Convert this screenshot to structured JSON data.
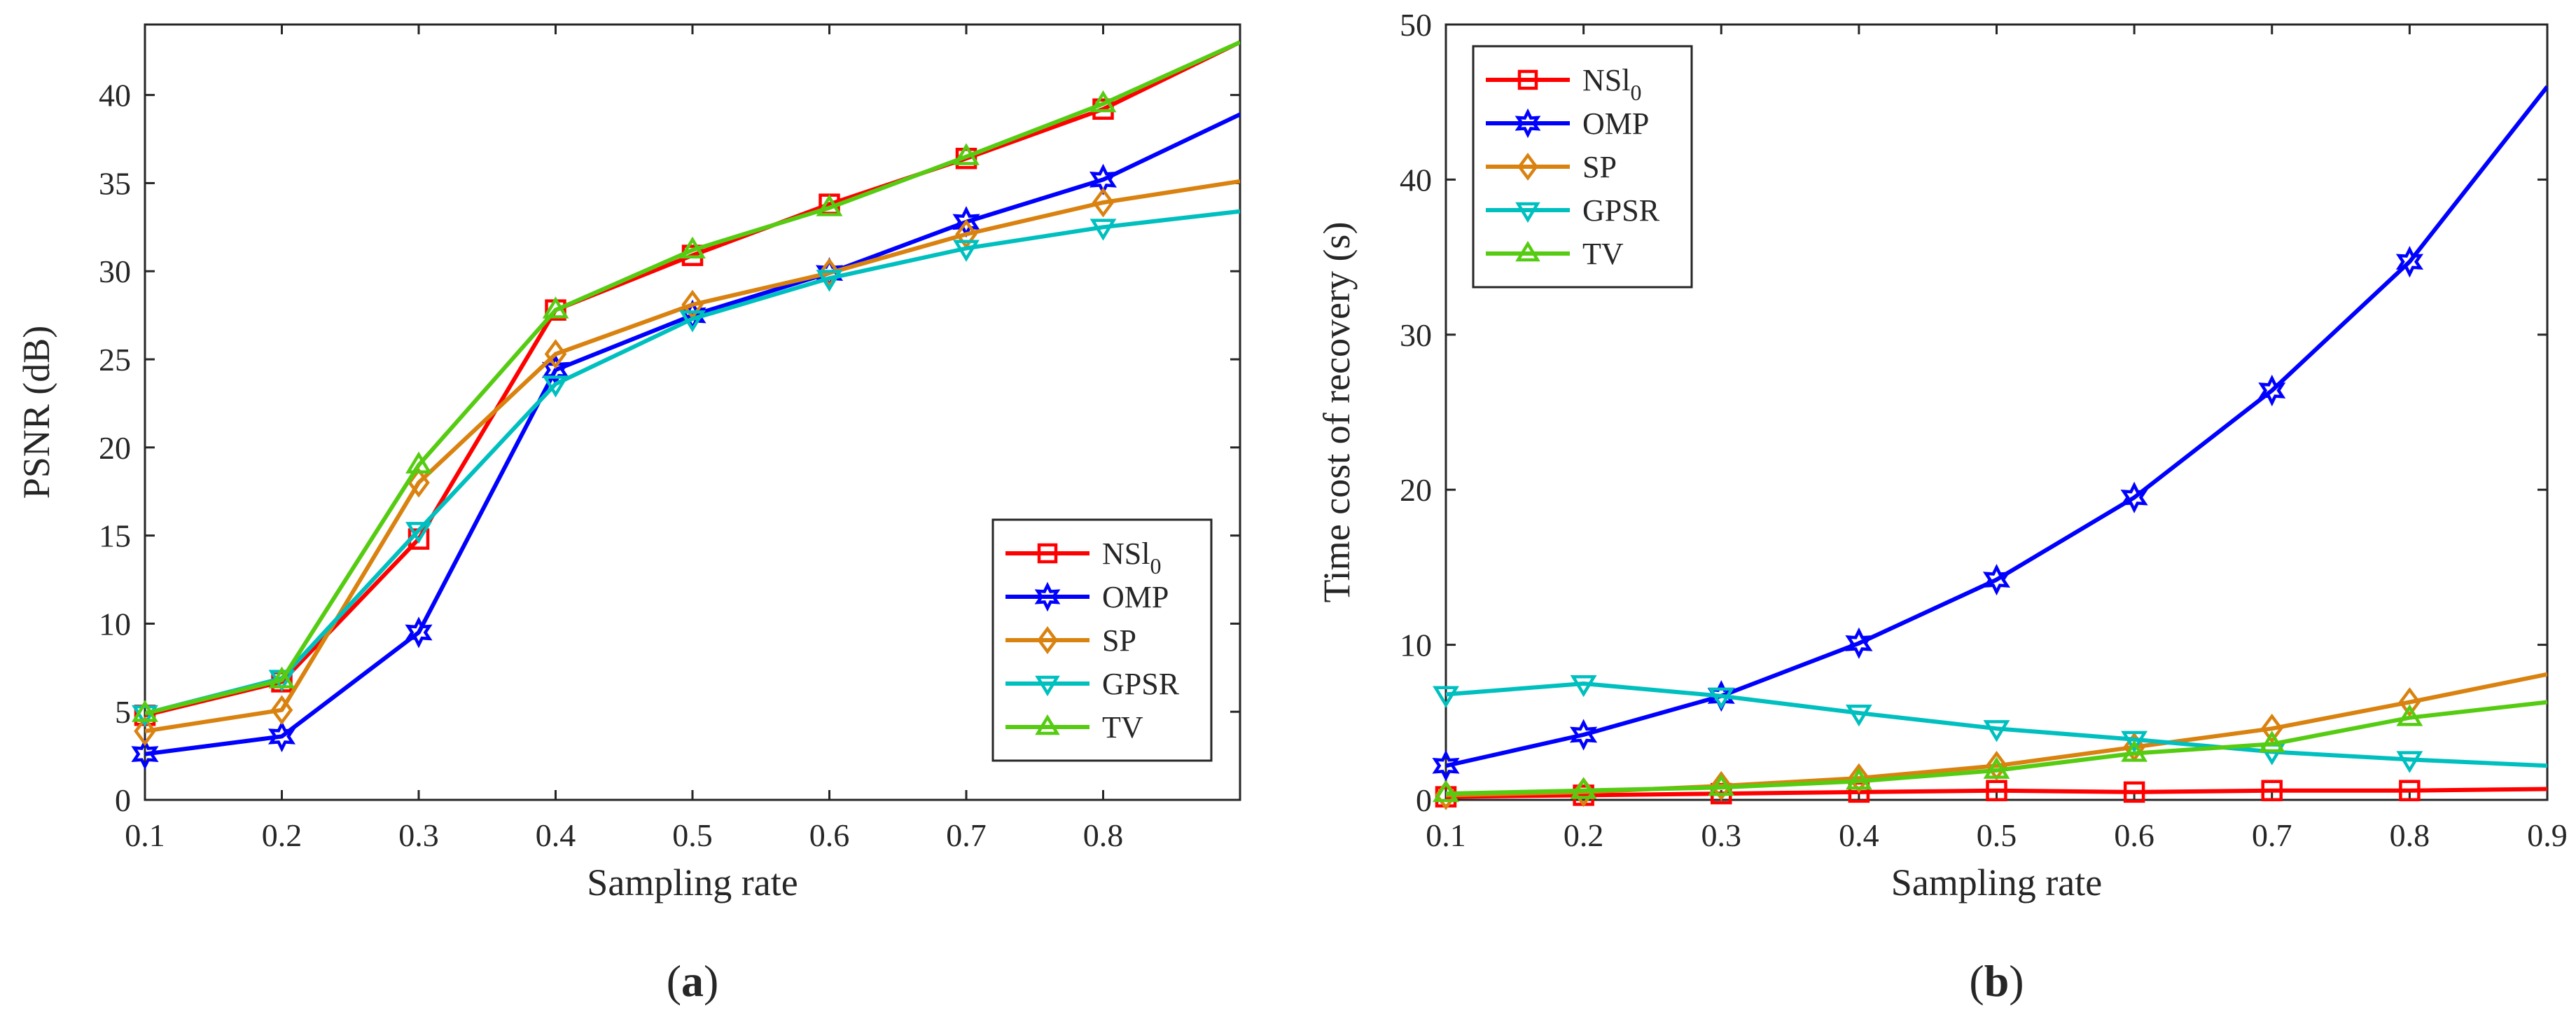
{
  "chart_data": [
    {
      "type": "line",
      "panel_caption": "a",
      "xlabel": "Sampling rate",
      "ylabel": "PSNR (dB)",
      "xlim": [
        0.1,
        0.9
      ],
      "ylim": [
        0,
        44
      ],
      "xticks": [
        0.1,
        0.2,
        0.3,
        0.4,
        0.5,
        0.6,
        0.7,
        0.8
      ],
      "xtick_labels": [
        "0.1",
        "0.2",
        "0.3",
        "0.4",
        "0.5",
        "0.6",
        "0.7",
        "0.8"
      ],
      "yticks": [
        0,
        5,
        10,
        15,
        20,
        25,
        30,
        35,
        40
      ],
      "ytick_labels": [
        "0",
        "5",
        "10",
        "15",
        "20",
        "25",
        "30",
        "35",
        "40"
      ],
      "legend_position": "bottom-right",
      "x": [
        0.1,
        0.2,
        0.3,
        0.4,
        0.5,
        0.6,
        0.7,
        0.8,
        0.9
      ],
      "series": [
        {
          "name": "NSl",
          "subscript": "0",
          "color": "#ff0000",
          "marker": "square",
          "values": [
            4.8,
            6.7,
            14.8,
            27.8,
            30.9,
            33.8,
            36.4,
            39.2,
            43.0
          ]
        },
        {
          "name": "OMP",
          "color": "#0000ff",
          "marker": "hexagram",
          "values": [
            2.6,
            3.6,
            9.5,
            24.4,
            27.5,
            29.9,
            32.8,
            35.2,
            38.9
          ]
        },
        {
          "name": "SP",
          "color": "#d9820f",
          "marker": "diamond",
          "values": [
            3.9,
            5.1,
            18.0,
            25.3,
            28.1,
            29.9,
            32.1,
            33.9,
            35.1
          ]
        },
        {
          "name": "GPSR",
          "color": "#00bfbf",
          "marker": "triangle-down",
          "values": [
            4.9,
            6.9,
            15.3,
            23.6,
            27.3,
            29.6,
            31.3,
            32.5,
            33.4
          ]
        },
        {
          "name": "TV",
          "color": "#55cc11",
          "marker": "triangle-up",
          "values": [
            4.9,
            6.8,
            19.0,
            27.8,
            31.2,
            33.6,
            36.5,
            39.5,
            43.0
          ]
        }
      ]
    },
    {
      "type": "line",
      "panel_caption": "b",
      "xlabel": "Sampling rate",
      "ylabel": "Time cost of recovery (s)",
      "xlim": [
        0.1,
        0.9
      ],
      "ylim": [
        0,
        50
      ],
      "xticks": [
        0.1,
        0.2,
        0.3,
        0.4,
        0.5,
        0.6,
        0.7,
        0.8,
        0.9
      ],
      "xtick_labels": [
        "0.1",
        "0.2",
        "0.3",
        "0.4",
        "0.5",
        "0.6",
        "0.7",
        "0.8",
        "0.9"
      ],
      "yticks": [
        0,
        10,
        20,
        30,
        40,
        50
      ],
      "ytick_labels": [
        "0",
        "10",
        "20",
        "30",
        "40",
        "50"
      ],
      "legend_position": "top-left",
      "x": [
        0.1,
        0.2,
        0.3,
        0.4,
        0.5,
        0.6,
        0.7,
        0.8,
        0.9
      ],
      "series": [
        {
          "name": "NSl",
          "subscript": "0",
          "color": "#ff0000",
          "marker": "square",
          "values": [
            0.2,
            0.3,
            0.4,
            0.5,
            0.6,
            0.5,
            0.6,
            0.6,
            0.7
          ]
        },
        {
          "name": "OMP",
          "color": "#0000ff",
          "marker": "hexagram",
          "values": [
            2.2,
            4.2,
            6.7,
            10.1,
            14.2,
            19.5,
            26.4,
            34.7,
            46.0
          ]
        },
        {
          "name": "SP",
          "color": "#d9820f",
          "marker": "diamond",
          "values": [
            0.3,
            0.5,
            0.9,
            1.4,
            2.2,
            3.4,
            4.6,
            6.3,
            8.1
          ]
        },
        {
          "name": "GPSR",
          "color": "#00bfbf",
          "marker": "triangle-down",
          "values": [
            6.8,
            7.5,
            6.7,
            5.6,
            4.6,
            3.9,
            3.1,
            2.6,
            2.2
          ]
        },
        {
          "name": "TV",
          "color": "#55cc11",
          "marker": "triangle-up",
          "values": [
            0.4,
            0.6,
            0.8,
            1.2,
            1.9,
            3.0,
            3.6,
            5.3,
            6.3
          ]
        }
      ]
    }
  ]
}
